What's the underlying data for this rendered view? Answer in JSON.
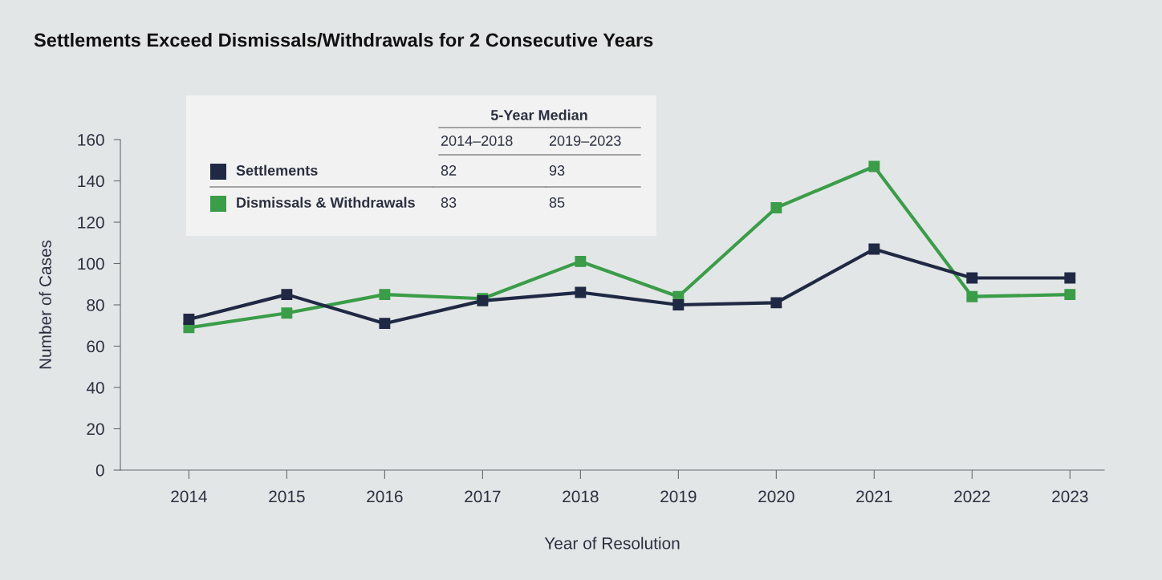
{
  "chart_data": {
    "type": "line",
    "title": "Settlements Exceed Dismissals/Withdrawals for 2 Consecutive Years",
    "xlabel": "Year of Resolution",
    "ylabel": "Number of Cases",
    "categories": [
      "2014",
      "2015",
      "2016",
      "2017",
      "2018",
      "2019",
      "2020",
      "2021",
      "2022",
      "2023"
    ],
    "series": [
      {
        "name": "Settlements",
        "color": "#1f2944",
        "values": [
          73,
          85,
          71,
          82,
          86,
          80,
          81,
          107,
          93,
          93
        ]
      },
      {
        "name": "Dismissals & Withdrawals",
        "color": "#3a9d48",
        "values": [
          69,
          76,
          85,
          83,
          101,
          84,
          127,
          147,
          84,
          85
        ]
      }
    ],
    "ylim": [
      0,
      160
    ],
    "yticks": [
      0,
      20,
      40,
      60,
      80,
      100,
      120,
      140,
      160
    ],
    "annotations": [
      "5-Year Median",
      "2014–2018",
      "2019–2023",
      "82",
      "93",
      "83",
      "85"
    ],
    "legend": "top left",
    "grid": false,
    "marker": "square",
    "line_style": "solid"
  }
}
